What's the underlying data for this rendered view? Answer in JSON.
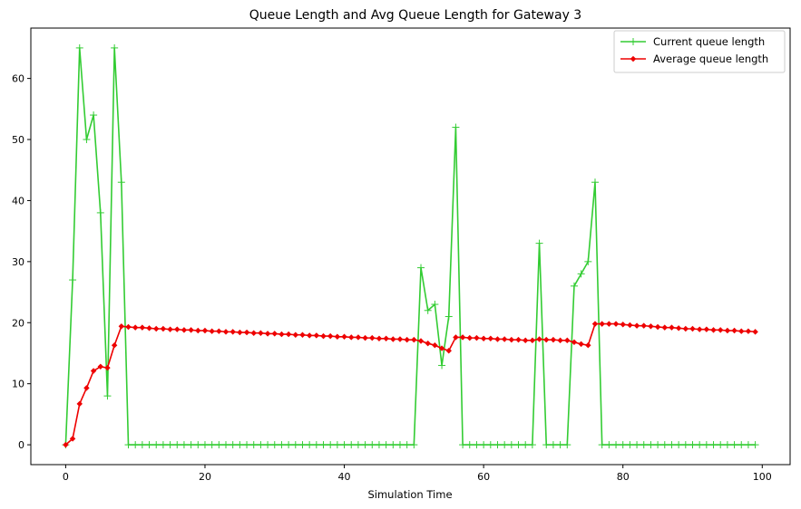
{
  "chart_data": {
    "type": "line",
    "title": "Queue Length and Avg Queue Length for Gateway 3",
    "xlabel": "Simulation Time",
    "ylabel": "",
    "xlim": [
      -5,
      104
    ],
    "ylim": [
      -3.25,
      68.25
    ],
    "xticks": [
      0,
      20,
      40,
      60,
      80,
      100
    ],
    "yticks": [
      0,
      10,
      20,
      30,
      40,
      50,
      60
    ],
    "grid": false,
    "legend_position": "top-right",
    "series": [
      {
        "name": "Current queue length",
        "color": "#33cc33",
        "marker": "plus",
        "x": [
          0,
          1,
          2,
          3,
          4,
          5,
          6,
          7,
          8,
          9,
          10,
          11,
          12,
          13,
          14,
          15,
          16,
          17,
          18,
          19,
          20,
          21,
          22,
          23,
          24,
          25,
          26,
          27,
          28,
          29,
          30,
          31,
          32,
          33,
          34,
          35,
          36,
          37,
          38,
          39,
          40,
          41,
          42,
          43,
          44,
          45,
          46,
          47,
          48,
          49,
          50,
          51,
          52,
          53,
          54,
          55,
          56,
          57,
          58,
          59,
          60,
          61,
          62,
          63,
          64,
          65,
          66,
          67,
          68,
          69,
          70,
          71,
          72,
          73,
          74,
          75,
          76,
          77,
          78,
          79,
          80,
          81,
          82,
          83,
          84,
          85,
          86,
          87,
          88,
          89,
          90,
          91,
          92,
          93,
          94,
          95,
          96,
          97,
          98,
          99
        ],
        "y": [
          0,
          27,
          65,
          50,
          54,
          38,
          8,
          65,
          43,
          0,
          0,
          0,
          0,
          0,
          0,
          0,
          0,
          0,
          0,
          0,
          0,
          0,
          0,
          0,
          0,
          0,
          0,
          0,
          0,
          0,
          0,
          0,
          0,
          0,
          0,
          0,
          0,
          0,
          0,
          0,
          0,
          0,
          0,
          0,
          0,
          0,
          0,
          0,
          0,
          0,
          0,
          29,
          22,
          23,
          13,
          21,
          52,
          0,
          0,
          0,
          0,
          0,
          0,
          0,
          0,
          0,
          0,
          0,
          33,
          0,
          0,
          0,
          0,
          26,
          28,
          30,
          43,
          0,
          0,
          0,
          0,
          0,
          0,
          0,
          0,
          0,
          0,
          0,
          0,
          0,
          0,
          0,
          0,
          0,
          0,
          0,
          0,
          0,
          0,
          0
        ]
      },
      {
        "name": "Average queue length",
        "color": "#ee0000",
        "marker": "diamond",
        "x": [
          0,
          1,
          2,
          3,
          4,
          5,
          6,
          7,
          8,
          9,
          10,
          11,
          12,
          13,
          14,
          15,
          16,
          17,
          18,
          19,
          20,
          21,
          22,
          23,
          24,
          25,
          26,
          27,
          28,
          29,
          30,
          31,
          32,
          33,
          34,
          35,
          36,
          37,
          38,
          39,
          40,
          41,
          42,
          43,
          44,
          45,
          46,
          47,
          48,
          49,
          50,
          51,
          52,
          53,
          54,
          55,
          56,
          57,
          58,
          59,
          60,
          61,
          62,
          63,
          64,
          65,
          66,
          67,
          68,
          69,
          70,
          71,
          72,
          73,
          74,
          75,
          76,
          77,
          78,
          79,
          80,
          81,
          82,
          83,
          84,
          85,
          86,
          87,
          88,
          89,
          90,
          91,
          92,
          93,
          94,
          95,
          96,
          97,
          98,
          99
        ],
        "y": [
          0,
          1.0,
          6.7,
          9.3,
          12.1,
          12.8,
          12.6,
          16.3,
          19.4,
          19.3,
          19.2,
          19.2,
          19.1,
          19.0,
          19.0,
          18.9,
          18.9,
          18.8,
          18.8,
          18.7,
          18.7,
          18.6,
          18.6,
          18.5,
          18.5,
          18.4,
          18.4,
          18.3,
          18.3,
          18.2,
          18.2,
          18.1,
          18.1,
          18.0,
          18.0,
          17.9,
          17.9,
          17.8,
          17.8,
          17.7,
          17.7,
          17.6,
          17.6,
          17.5,
          17.5,
          17.4,
          17.4,
          17.3,
          17.3,
          17.2,
          17.2,
          17.0,
          16.6,
          16.3,
          15.8,
          15.4,
          17.6,
          17.6,
          17.5,
          17.5,
          17.4,
          17.4,
          17.3,
          17.3,
          17.2,
          17.2,
          17.1,
          17.1,
          17.3,
          17.2,
          17.2,
          17.1,
          17.1,
          16.8,
          16.5,
          16.3,
          19.8,
          19.8,
          19.8,
          19.8,
          19.7,
          19.6,
          19.5,
          19.5,
          19.4,
          19.3,
          19.2,
          19.2,
          19.1,
          19.0,
          19.0,
          18.9,
          18.9,
          18.8,
          18.8,
          18.7,
          18.7,
          18.6,
          18.6,
          18.5
        ]
      }
    ]
  }
}
